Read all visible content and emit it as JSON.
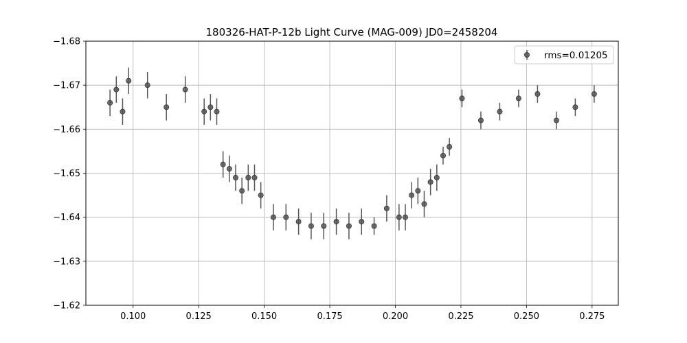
{
  "chart_data": {
    "type": "scatter",
    "title": "180326-HAT-P-12b Light Curve (MAG-009) JD0=2458204",
    "xlabel": "",
    "ylabel": "",
    "xlim": [
      0.082,
      0.285
    ],
    "ylim": [
      -1.62,
      -1.68
    ],
    "y_inverted": true,
    "grid": true,
    "legend": {
      "placement": "top-right"
    },
    "x_ticks": [
      {
        "value": 0.1,
        "label": "0.100"
      },
      {
        "value": 0.125,
        "label": "0.125"
      },
      {
        "value": 0.15,
        "label": "0.150"
      },
      {
        "value": 0.175,
        "label": "0.175"
      },
      {
        "value": 0.2,
        "label": "0.200"
      },
      {
        "value": 0.225,
        "label": "0.225"
      },
      {
        "value": 0.25,
        "label": "0.250"
      },
      {
        "value": 0.275,
        "label": "0.275"
      }
    ],
    "y_ticks": [
      {
        "value": -1.68,
        "label": "−1.68"
      },
      {
        "value": -1.67,
        "label": "−1.67"
      },
      {
        "value": -1.66,
        "label": "−1.66"
      },
      {
        "value": -1.65,
        "label": "−1.65"
      },
      {
        "value": -1.64,
        "label": "−1.64"
      },
      {
        "value": -1.63,
        "label": "−1.63"
      },
      {
        "value": -1.62,
        "label": "−1.62"
      }
    ],
    "series": [
      {
        "name": "rms=0.01205",
        "color": "#555555",
        "x": [
          0.0912,
          0.0936,
          0.096,
          0.0983,
          0.1055,
          0.1127,
          0.1199,
          0.1271,
          0.1295,
          0.1319,
          0.1343,
          0.1367,
          0.1391,
          0.1415,
          0.1439,
          0.1463,
          0.1487,
          0.1535,
          0.1583,
          0.1631,
          0.1679,
          0.1727,
          0.1775,
          0.1823,
          0.1871,
          0.1919,
          0.1967,
          0.2014,
          0.2038,
          0.2062,
          0.2086,
          0.211,
          0.2134,
          0.2158,
          0.2182,
          0.2206,
          0.2254,
          0.2326,
          0.2398,
          0.247,
          0.2542,
          0.2614,
          0.2686,
          0.2758
        ],
        "y": [
          -1.666,
          -1.669,
          -1.664,
          -1.671,
          -1.67,
          -1.665,
          -1.669,
          -1.664,
          -1.665,
          -1.664,
          -1.652,
          -1.651,
          -1.649,
          -1.646,
          -1.649,
          -1.649,
          -1.645,
          -1.64,
          -1.64,
          -1.639,
          -1.638,
          -1.638,
          -1.639,
          -1.638,
          -1.639,
          -1.638,
          -1.642,
          -1.64,
          -1.64,
          -1.645,
          -1.646,
          -1.643,
          -1.648,
          -1.649,
          -1.654,
          -1.656,
          -1.667,
          -1.662,
          -1.664,
          -1.667,
          -1.668,
          -1.662,
          -1.665,
          -1.668
        ],
        "yerr": [
          0.003,
          0.003,
          0.003,
          0.003,
          0.003,
          0.003,
          0.003,
          0.003,
          0.003,
          0.003,
          0.003,
          0.003,
          0.003,
          0.003,
          0.003,
          0.003,
          0.003,
          0.003,
          0.003,
          0.003,
          0.003,
          0.003,
          0.003,
          0.003,
          0.003,
          0.002,
          0.003,
          0.003,
          0.003,
          0.003,
          0.003,
          0.003,
          0.003,
          0.003,
          0.002,
          0.002,
          0.002,
          0.002,
          0.002,
          0.002,
          0.002,
          0.002,
          0.002,
          0.002
        ]
      }
    ]
  }
}
